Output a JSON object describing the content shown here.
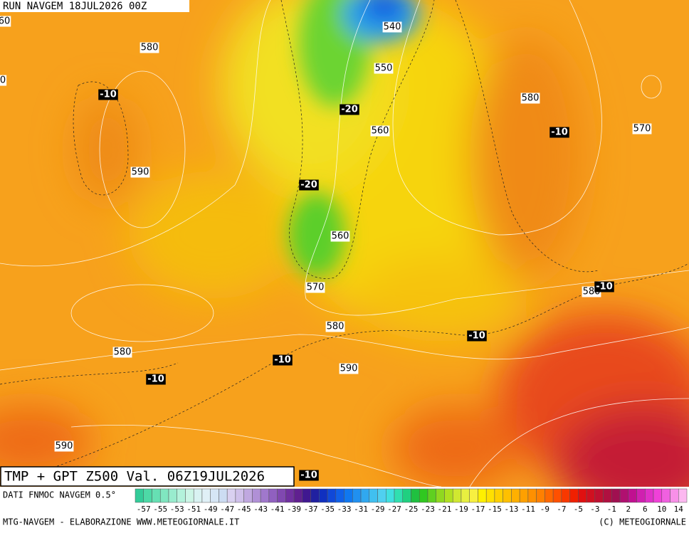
{
  "header": {
    "run": "RUN NAVGEM 18JUL2026 00Z"
  },
  "map": {
    "height_labels": [
      60,
      0,
      580,
      590,
      540,
      550,
      560,
      560,
      570,
      580,
      590,
      580,
      590,
      580,
      570,
      580
    ],
    "temperature_labels": [
      -10,
      -20,
      -10,
      -20,
      -10,
      -10,
      -10,
      -10,
      -10
    ]
  },
  "title": "TMP + GPT Z500 Val. 06Z19JUL2026",
  "legend": {
    "source": "DATI FNMOC NAVGEM 0.5°",
    "labels": [
      -57,
      -55,
      -53,
      -51,
      -49,
      -47,
      -45,
      -43,
      -41,
      -39,
      -37,
      -35,
      -33,
      -31,
      -29,
      -27,
      -25,
      -23,
      -21,
      -19,
      -17,
      -15,
      -13,
      -11,
      -9,
      -7,
      -5,
      -3,
      -1,
      2,
      6,
      10,
      14
    ],
    "colors": [
      "#33cc99",
      "#4dd9a6",
      "#66e0b3",
      "#80e6c0",
      "#99ecce",
      "#b3f2db",
      "#ccf5e6",
      "#d9f2f2",
      "#e0f0f7",
      "#d6e6f5",
      "#ccdcf2",
      "#d9d0f0",
      "#cfc0ea",
      "#c0a8e0",
      "#b090d6",
      "#a078cc",
      "#9060c0",
      "#8048b0",
      "#7030a0",
      "#602090",
      "#401890",
      "#2020a0",
      "#1030c0",
      "#1048d8",
      "#1060e8",
      "#1078f0",
      "#2090f0",
      "#30a8f0",
      "#40c0f0",
      "#50d0f0",
      "#40e0e0",
      "#30e0b0",
      "#20d080",
      "#20c040",
      "#30c820",
      "#60d020",
      "#90d820",
      "#b0e020",
      "#d0e830",
      "#e8f040",
      "#f8f040",
      "#fff000",
      "#ffe000",
      "#ffd000",
      "#ffc000",
      "#ffb000",
      "#ffa000",
      "#ff9000",
      "#ff8000",
      "#ff6800",
      "#ff5000",
      "#f83800",
      "#f02000",
      "#e01010",
      "#d01020",
      "#c01030",
      "#b01040",
      "#a01050",
      "#b01070",
      "#c01090",
      "#d020b0",
      "#e030c8",
      "#f040d8",
      "#f060e0",
      "#f890e8",
      "#fcb8f0"
    ]
  },
  "footer": {
    "left": "MTG-NAVGEM - ELABORAZIONE WWW.METEOGIORNALE.IT",
    "right": "(C) METEOGIORNALE"
  }
}
